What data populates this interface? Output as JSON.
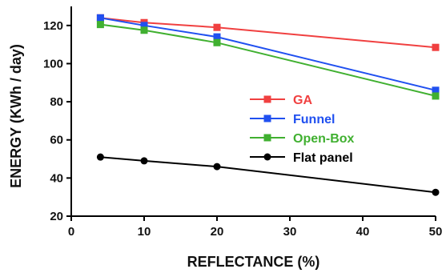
{
  "chart_data": {
    "type": "line",
    "xlabel": "REFLECTANCE (%)",
    "ylabel": "ENERGY (KWh / day)",
    "xlim": [
      0,
      50
    ],
    "ylim": [
      20,
      130
    ],
    "xticks": [
      0,
      10,
      20,
      30,
      40,
      50
    ],
    "yticks": [
      20,
      40,
      60,
      80,
      100,
      120
    ],
    "grid": false,
    "legend_position": "center-right",
    "series": [
      {
        "name": "GA",
        "color": "#f04040",
        "marker": "square",
        "label_color": "#f04040",
        "x": [
          4,
          10,
          20,
          50
        ],
        "y": [
          124,
          121.5,
          119,
          108.5
        ]
      },
      {
        "name": "Funnel",
        "color": "#2050f0",
        "marker": "square",
        "label_color": "#2050f0",
        "x": [
          4,
          10,
          20,
          50
        ],
        "y": [
          124,
          120,
          114,
          86
        ]
      },
      {
        "name": "Open-Box",
        "color": "#40b030",
        "marker": "square",
        "label_color": "#40b030",
        "x": [
          4,
          10,
          20,
          50
        ],
        "y": [
          120.5,
          117.5,
          111,
          83
        ]
      },
      {
        "name": "Flat panel",
        "color": "#000000",
        "marker": "circle",
        "label_color": "#000000",
        "x": [
          4,
          10,
          20,
          50
        ],
        "y": [
          51,
          49,
          46,
          32.5
        ]
      }
    ]
  }
}
